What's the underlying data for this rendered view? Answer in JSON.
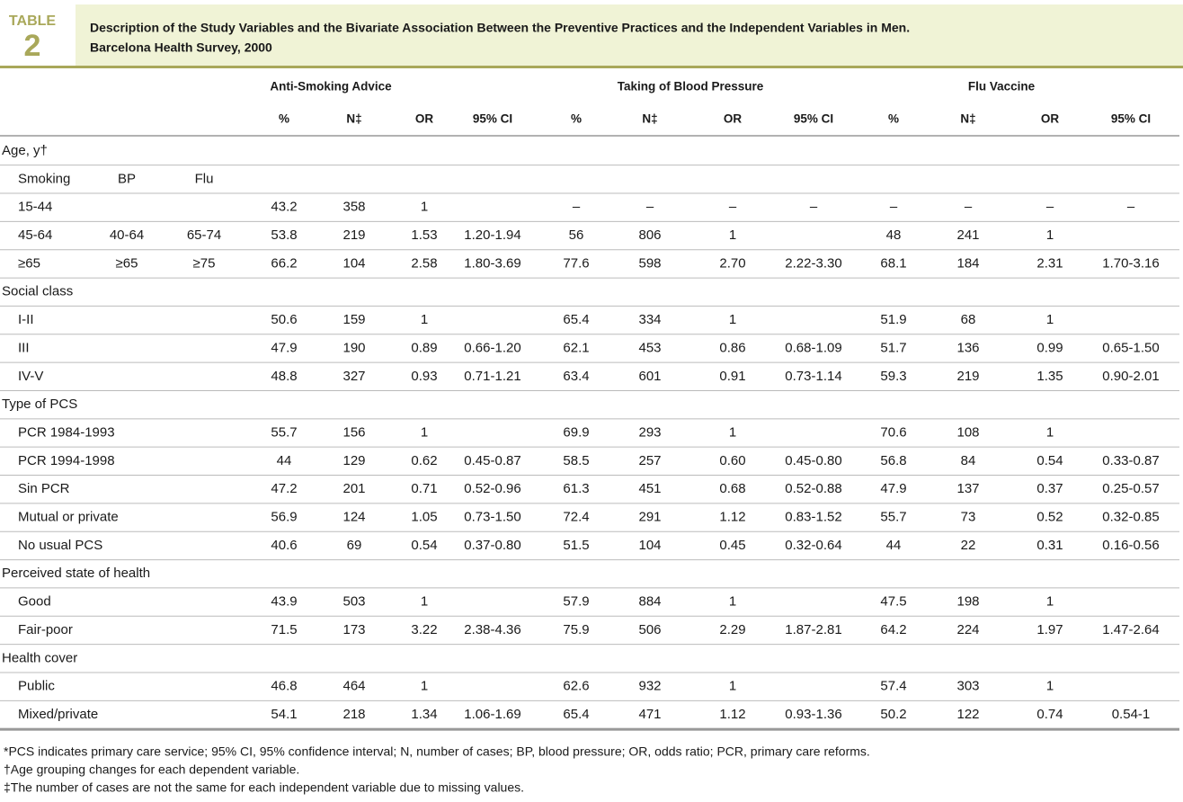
{
  "header": {
    "label": "TABLE",
    "number": "2",
    "title": [
      "Description of the Study Variables and the Bivariate Association Between the Preventive Practices and the Independent Variables in Men.",
      "Barcelona Health Survey, 2000"
    ]
  },
  "table": {
    "groups": [
      "Anti-Smoking Advice",
      "Taking of Blood Pressure",
      "Flu Vaccine"
    ],
    "columns": [
      "%",
      "N‡",
      "OR",
      "95% CI",
      "%",
      "N‡",
      "OR",
      "95% CI",
      "%",
      "N‡",
      "OR",
      "95% CI"
    ],
    "sections": [
      {
        "title": "Age, y†",
        "rows": [
          {
            "labels": [
              "Smoking",
              "BP",
              "Flu"
            ],
            "cells": []
          },
          {
            "labels": [
              "15-44"
            ],
            "cells": [
              "43.2",
              "358",
              "1",
              null,
              "–",
              "–",
              "–",
              "–",
              "–",
              "–",
              "–",
              "–"
            ]
          },
          {
            "labels": [
              "45-64",
              "40-64",
              "65-74"
            ],
            "cells": [
              "53.8",
              "219",
              "1.53",
              "1.20-1.94",
              "56",
              "806",
              "1",
              null,
              "48",
              "241",
              "1",
              null
            ]
          },
          {
            "labels": [
              "≥65",
              "≥65",
              "≥75"
            ],
            "cells": [
              "66.2",
              "104",
              "2.58",
              "1.80-3.69",
              "77.6",
              "598",
              "2.70",
              "2.22-3.30",
              "68.1",
              "184",
              "2.31",
              "1.70-3.16"
            ]
          }
        ]
      },
      {
        "title": "Social class",
        "rows": [
          {
            "labels": [
              "I-II"
            ],
            "cells": [
              "50.6",
              "159",
              "1",
              null,
              "65.4",
              "334",
              "1",
              null,
              "51.9",
              "68",
              "1",
              null
            ]
          },
          {
            "labels": [
              "III"
            ],
            "cells": [
              "47.9",
              "190",
              "0.89",
              "0.66-1.20",
              "62.1",
              "453",
              "0.86",
              "0.68-1.09",
              "51.7",
              "136",
              "0.99",
              "0.65-1.50"
            ]
          },
          {
            "labels": [
              "IV-V"
            ],
            "cells": [
              "48.8",
              "327",
              "0.93",
              "0.71-1.21",
              "63.4",
              "601",
              "0.91",
              "0.73-1.14",
              "59.3",
              "219",
              "1.35",
              "0.90-2.01"
            ]
          }
        ]
      },
      {
        "title": "Type of PCS",
        "rows": [
          {
            "labels": [
              "PCR 1984-1993"
            ],
            "cells": [
              "55.7",
              "156",
              "1",
              null,
              "69.9",
              "293",
              "1",
              null,
              "70.6",
              "108",
              "1",
              null
            ]
          },
          {
            "labels": [
              "PCR 1994-1998"
            ],
            "cells": [
              "44",
              "129",
              "0.62",
              "0.45-0.87",
              "58.5",
              "257",
              "0.60",
              "0.45-0.80",
              "56.8",
              "84",
              "0.54",
              "0.33-0.87"
            ]
          },
          {
            "labels": [
              "Sin PCR"
            ],
            "cells": [
              "47.2",
              "201",
              "0.71",
              "0.52-0.96",
              "61.3",
              "451",
              "0.68",
              "0.52-0.88",
              "47.9",
              "137",
              "0.37",
              "0.25-0.57"
            ]
          },
          {
            "labels": [
              "Mutual or private"
            ],
            "cells": [
              "56.9",
              "124",
              "1.05",
              "0.73-1.50",
              "72.4",
              "291",
              "1.12",
              "0.83-1.52",
              "55.7",
              "73",
              "0.52",
              "0.32-0.85"
            ]
          },
          {
            "labels": [
              "No usual PCS"
            ],
            "cells": [
              "40.6",
              "69",
              "0.54",
              "0.37-0.80",
              "51.5",
              "104",
              "0.45",
              "0.32-0.64",
              "44",
              "22",
              "0.31",
              "0.16-0.56"
            ]
          }
        ]
      },
      {
        "title": "Perceived state of health",
        "rows": [
          {
            "labels": [
              "Good"
            ],
            "cells": [
              "43.9",
              "503",
              "1",
              null,
              "57.9",
              "884",
              "1",
              null,
              "47.5",
              "198",
              "1",
              null
            ]
          },
          {
            "labels": [
              "Fair-poor"
            ],
            "cells": [
              "71.5",
              "173",
              "3.22",
              "2.38-4.36",
              "75.9",
              "506",
              "2.29",
              "1.87-2.81",
              "64.2",
              "224",
              "1.97",
              "1.47-2.64"
            ]
          }
        ]
      },
      {
        "title": "Health cover",
        "rows": [
          {
            "labels": [
              "Public"
            ],
            "cells": [
              "46.8",
              "464",
              "1",
              null,
              "62.6",
              "932",
              "1",
              null,
              "57.4",
              "303",
              "1",
              null
            ]
          },
          {
            "labels": [
              "Mixed/private"
            ],
            "cells": [
              "54.1",
              "218",
              "1.34",
              "1.06-1.69",
              "65.4",
              "471",
              "1.12",
              "0.93-1.36",
              "50.2",
              "122",
              "0.74",
              "0.54-1"
            ]
          }
        ]
      }
    ]
  },
  "footnotes": [
    "*PCS indicates primary care service; 95% CI, 95% confidence interval; N, number of cases; BP, blood pressure; OR, odds ratio; PCR, primary care reforms.",
    "†Age grouping changes for each dependent variable.",
    "‡The number of cases are not the same for each independent variable due to missing values."
  ]
}
